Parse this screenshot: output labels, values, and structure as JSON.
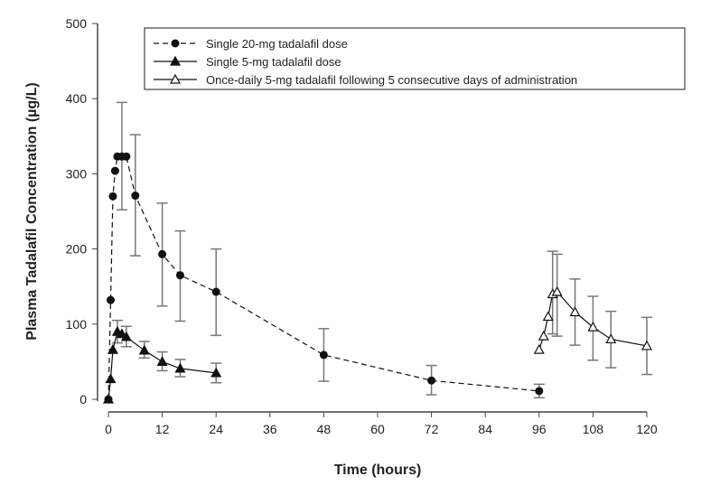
{
  "chart_data": {
    "type": "line",
    "title": "",
    "xlabel": "Time (hours)",
    "ylabel": "Plasma Tadalafil Concentration (µg/L)",
    "xlim": [
      0,
      120
    ],
    "ylim": [
      0,
      500
    ],
    "xticks": [
      0,
      12,
      24,
      36,
      48,
      60,
      72,
      84,
      96,
      108,
      120
    ],
    "yticks": [
      0,
      100,
      200,
      300,
      400,
      500
    ],
    "legend_position": "top-right",
    "grid": false,
    "series": [
      {
        "name": "Single 20-mg tadalafil dose",
        "marker": "filled-circle",
        "line": "dashed",
        "x": [
          0,
          0.5,
          1,
          1.5,
          2,
          3,
          4,
          6,
          12,
          16,
          24,
          48,
          72,
          96
        ],
        "y": [
          0,
          132,
          270,
          304,
          323,
          323,
          323,
          271,
          193,
          165,
          143,
          59,
          25,
          11
        ],
        "err_low": [
          null,
          null,
          null,
          null,
          null,
          252,
          null,
          191,
          124,
          104,
          85,
          24,
          6,
          2
        ],
        "err_high": [
          null,
          null,
          null,
          null,
          null,
          395,
          null,
          352,
          261,
          224,
          200,
          94,
          45,
          20
        ]
      },
      {
        "name": "Single 5-mg tadalafil dose",
        "marker": "filled-triangle",
        "line": "solid",
        "x": [
          0,
          0.5,
          1,
          2,
          3,
          4,
          8,
          12,
          16,
          24
        ],
        "y": [
          0,
          27,
          66,
          90,
          87,
          83,
          65,
          50,
          41,
          35
        ],
        "err_low": [
          null,
          null,
          null,
          75,
          null,
          70,
          55,
          38,
          30,
          22
        ],
        "err_high": [
          null,
          null,
          null,
          105,
          null,
          97,
          77,
          63,
          53,
          48
        ]
      },
      {
        "name": "Once-daily 5-mg tadalafil following 5 consecutive days of administration",
        "marker": "open-triangle",
        "line": "solid",
        "x": [
          96,
          97,
          98,
          99,
          100,
          104,
          108,
          112,
          120
        ],
        "y": [
          66,
          84,
          110,
          140,
          143,
          116,
          96,
          80,
          71
        ],
        "err_low": [
          null,
          null,
          null,
          87,
          84,
          72,
          52,
          42,
          33
        ],
        "err_high": [
          null,
          null,
          null,
          197,
          193,
          160,
          137,
          117,
          109
        ]
      }
    ]
  }
}
